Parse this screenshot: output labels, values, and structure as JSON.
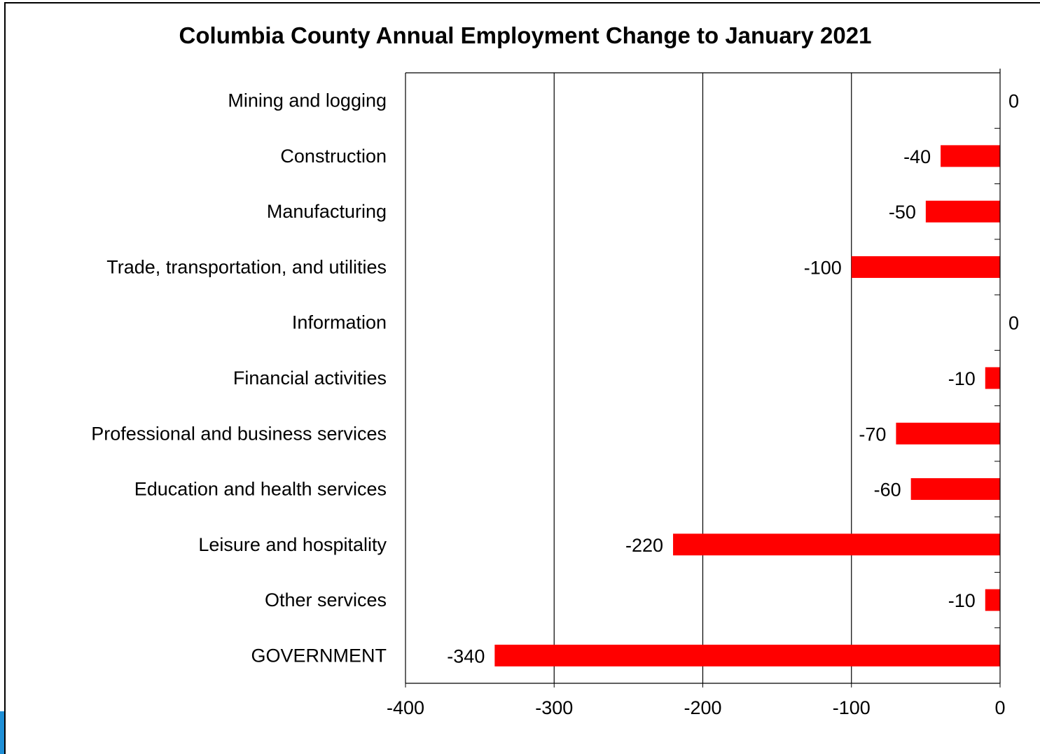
{
  "colors": {
    "bar": "#ff0000",
    "axis": "#000000",
    "accent": "#1f8fd6"
  },
  "chart_data": {
    "type": "bar",
    "orientation": "horizontal",
    "title": "Columbia County Annual Employment Change to January 2021",
    "xlabel": "",
    "ylabel": "",
    "categories": [
      "Mining and logging",
      "Construction",
      "Manufacturing",
      "Trade, transportation, and utilities",
      "Information",
      "Financial activities",
      "Professional and business services",
      "Education and health services",
      "Leisure and hospitality",
      "Other services",
      "GOVERNMENT"
    ],
    "values": [
      0,
      -40,
      -50,
      -100,
      0,
      -10,
      -70,
      -60,
      -220,
      -10,
      -340
    ],
    "data_labels": [
      "0",
      "-40",
      "-50",
      "-100",
      "0",
      "-10",
      "-70",
      "-60",
      "-220",
      "-10",
      "-340"
    ],
    "xlim": [
      -400,
      0
    ],
    "x_ticks": [
      -400,
      -300,
      -200,
      -100,
      0
    ],
    "x_tick_labels": [
      "-400",
      "-300",
      "-200",
      "-100",
      "0"
    ],
    "grid": "vertical",
    "legend": "none"
  }
}
